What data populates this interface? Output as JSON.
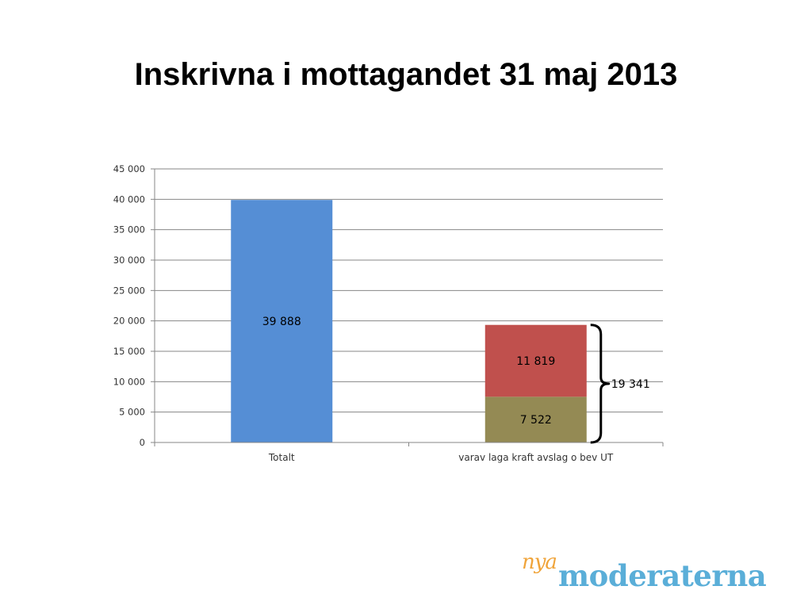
{
  "slide": {
    "title": "Inskrivna i mottagandet 31 maj 2013"
  },
  "logo": {
    "script_text": "nya",
    "main_text": "moderaterna",
    "script_color": "#f0a43a",
    "main_color": "#5aaed8"
  },
  "chart_data": {
    "type": "bar",
    "stacked": true,
    "categories": [
      "Totalt",
      "varav laga kraft avslag o bev UT"
    ],
    "series": [
      {
        "color": "#558ed5",
        "values": [
          39888,
          null
        ],
        "labels": [
          "39 888",
          ""
        ]
      },
      {
        "color": "#948a54",
        "values": [
          null,
          7522
        ],
        "labels": [
          "",
          "7 522"
        ]
      },
      {
        "color": "#c0504d",
        "values": [
          null,
          11819
        ],
        "labels": [
          "",
          "11 819"
        ]
      }
    ],
    "ylim": [
      0,
      45000
    ],
    "yticks": [
      0,
      5000,
      10000,
      15000,
      20000,
      25000,
      30000,
      35000,
      40000,
      45000
    ],
    "ytick_labels": [
      "0",
      "5 000",
      "10 000",
      "15 000",
      "20 000",
      "25 000",
      "30 000",
      "35 000",
      "40 000",
      "45 000"
    ],
    "grid": true,
    "legend": "none",
    "annotation": {
      "text": "19 341",
      "category": 1,
      "from": 0,
      "to": 19341
    }
  }
}
